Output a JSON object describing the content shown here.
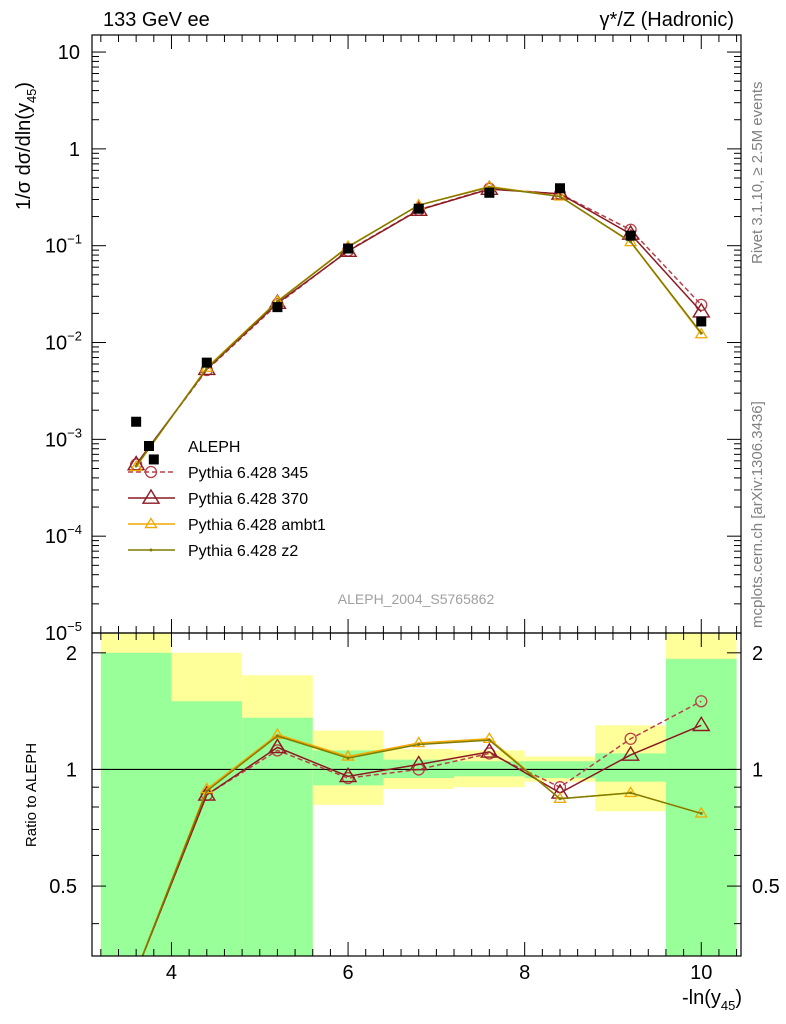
{
  "header": {
    "left": "133 GeV ee",
    "right": "γ*/Z (Hadronic)"
  },
  "side_text": {
    "top": "Rivet 3.1.10, ≥ 2.5M events",
    "bottom": "mcplots.cern.ch [arXiv:1306.3436]"
  },
  "analysis_id": "ALEPH_2004_S5765862",
  "colors": {
    "data": "#000000",
    "p345": "#b8404a",
    "p370": "#8c1a22",
    "ambt1": "#f2a900",
    "z2": "#7f7a00",
    "band_stat": "#99ff99",
    "band_tot": "#ffff99"
  },
  "chart_data": [
    {
      "type": "line",
      "log_y": true,
      "ylabel": "1/σ dσ/dln(y45)",
      "xlim": [
        3.1,
        10.45
      ],
      "ylim": [
        1e-05,
        15
      ],
      "y_tick_labels": [
        "10",
        "1",
        "10-1",
        "10-2",
        "10-3",
        "10-4",
        "10-5"
      ],
      "legend_position": "lower-left",
      "data_series": {
        "name": "ALEPH",
        "points": [
          {
            "x": 3.6,
            "y": 0.00152
          },
          {
            "x": 3.8,
            "y": 0.00062
          },
          {
            "x": 4.4,
            "y": 0.0062
          },
          {
            "x": 5.2,
            "y": 0.0232
          },
          {
            "x": 6.0,
            "y": 0.0935
          },
          {
            "x": 6.8,
            "y": 0.241
          },
          {
            "x": 7.6,
            "y": 0.352
          },
          {
            "x": 8.4,
            "y": 0.392
          },
          {
            "x": 9.2,
            "y": 0.127
          },
          {
            "x": 10.0,
            "y": 0.0165
          }
        ]
      },
      "x": [
        3.6,
        4.4,
        5.2,
        6.0,
        6.8,
        7.6,
        8.4,
        9.2,
        10.0
      ],
      "series": [
        {
          "name": "Pythia 6.428 345",
          "key": "p345",
          "marker": "circle",
          "dashed": true,
          "values": [
            0.00055,
            0.0052,
            0.0248,
            0.089,
            0.235,
            0.388,
            0.343,
            0.146,
            0.0245
          ]
        },
        {
          "name": "Pythia 6.428 370",
          "key": "p370",
          "marker": "triangle-big",
          "dashed": false,
          "values": [
            0.00055,
            0.0053,
            0.0255,
            0.088,
            0.233,
            0.384,
            0.343,
            0.132,
            0.0208
          ]
        },
        {
          "name": "Pythia 6.428 ambt1",
          "key": "ambt1",
          "marker": "triangle-small",
          "dashed": false,
          "values": [
            0.00052,
            0.0055,
            0.0267,
            0.098,
            0.262,
            0.408,
            0.323,
            0.109,
            0.0122
          ]
        },
        {
          "name": "Pythia 6.428 z2",
          "key": "z2",
          "marker": "dot",
          "dashed": false,
          "values": [
            0.00053,
            0.0054,
            0.0265,
            0.097,
            0.262,
            0.403,
            0.322,
            0.11,
            0.0125
          ]
        }
      ]
    },
    {
      "type": "line",
      "ylabel": "Ratio to ALEPH",
      "xlabel": "-ln(y45)",
      "xlim": [
        3.1,
        10.45
      ],
      "ylim": [
        0.33,
        2.25
      ],
      "x_ticks": [
        4,
        6,
        8,
        10
      ],
      "y_ticks": [
        0.5,
        1,
        2
      ],
      "bands": [
        {
          "x0": 3.2,
          "x1": 4.0,
          "stat": [
            0.33,
            2.0
          ],
          "tot": [
            0.33,
            2.25
          ]
        },
        {
          "x0": 4.0,
          "x1": 4.8,
          "stat": [
            0.33,
            1.5
          ],
          "tot": [
            0.33,
            2.0
          ]
        },
        {
          "x0": 4.8,
          "x1": 5.6,
          "stat": [
            0.33,
            1.36
          ],
          "tot": [
            0.33,
            1.75
          ]
        },
        {
          "x0": 5.6,
          "x1": 6.4,
          "stat": [
            0.91,
            1.12
          ],
          "tot": [
            0.81,
            1.26
          ]
        },
        {
          "x0": 6.4,
          "x1": 7.2,
          "stat": [
            0.95,
            1.06
          ],
          "tot": [
            0.89,
            1.13
          ]
        },
        {
          "x0": 7.2,
          "x1": 8.0,
          "stat": [
            0.96,
            1.05
          ],
          "tot": [
            0.9,
            1.12
          ]
        },
        {
          "x0": 8.0,
          "x1": 8.8,
          "stat": [
            0.95,
            1.05
          ],
          "tot": [
            0.93,
            1.08
          ]
        },
        {
          "x0": 8.8,
          "x1": 9.6,
          "stat": [
            0.93,
            1.1
          ],
          "tot": [
            0.78,
            1.3
          ]
        },
        {
          "x0": 9.6,
          "x1": 10.4,
          "stat": [
            0.33,
            1.93
          ],
          "tot": [
            0.33,
            2.25
          ]
        }
      ],
      "x": [
        3.6,
        4.4,
        5.2,
        6.0,
        6.8,
        7.6,
        8.4,
        9.2,
        10.0
      ],
      "series": [
        {
          "name": "Pythia 6.428 345",
          "key": "p345",
          "marker": "circle",
          "dashed": true,
          "values": [
            0.3,
            0.86,
            1.12,
            0.95,
            1.0,
            1.1,
            0.9,
            1.2,
            1.5
          ]
        },
        {
          "name": "Pythia 6.428 370",
          "key": "p370",
          "marker": "triangle-big",
          "dashed": false,
          "values": [
            0.3,
            0.86,
            1.14,
            0.96,
            1.03,
            1.11,
            0.87,
            1.09,
            1.3
          ]
        },
        {
          "name": "Pythia 6.428 ambt1",
          "key": "ambt1",
          "marker": "triangle-small",
          "dashed": false,
          "values": [
            0.3,
            0.89,
            1.23,
            1.08,
            1.17,
            1.2,
            0.84,
            0.87,
            0.77
          ]
        },
        {
          "name": "Pythia 6.428 z2",
          "key": "z2",
          "marker": "dot",
          "dashed": false,
          "values": [
            0.3,
            0.88,
            1.22,
            1.07,
            1.16,
            1.19,
            0.84,
            0.87,
            0.77
          ]
        }
      ]
    }
  ]
}
